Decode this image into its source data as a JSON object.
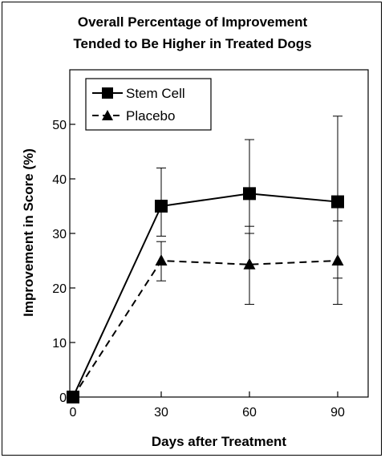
{
  "chart_data": {
    "type": "line",
    "title_line1": "Overall Percentage of Improvement",
    "title_line2": "Tended to Be Higher in Treated Dogs",
    "xlabel": "Days after Treatment",
    "ylabel": "Improvement in Score (%)",
    "x": [
      0,
      30,
      60,
      90
    ],
    "xlim": [
      0,
      95
    ],
    "ylim": [
      0,
      60
    ],
    "xticks": [
      0,
      30,
      60,
      90
    ],
    "yticks": [
      0,
      10,
      20,
      30,
      40,
      50
    ],
    "legend_position": "top-left",
    "grid": false,
    "series": [
      {
        "name": "Stem Cell",
        "marker": "square",
        "line": "solid",
        "color": "#000000",
        "values": [
          0,
          35,
          37.3,
          35.8
        ],
        "err_low": [
          null,
          29.5,
          30,
          21.8
        ],
        "err_high": [
          null,
          42,
          47.2,
          51.5
        ]
      },
      {
        "name": "Placebo",
        "marker": "triangle",
        "line": "dashed",
        "color": "#000000",
        "values": [
          0,
          25,
          24.3,
          25
        ],
        "err_low": [
          null,
          21.3,
          17,
          17
        ],
        "err_high": [
          null,
          28.5,
          31.3,
          32.3
        ]
      }
    ]
  }
}
